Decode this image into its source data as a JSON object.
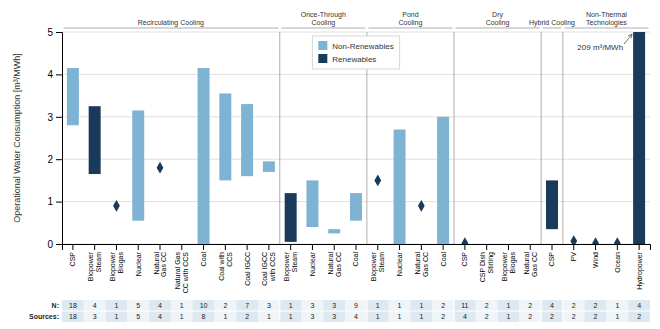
{
  "chart_data": {
    "type": "bar",
    "ylabel": "Operational Water Consumption [m³/MWh]",
    "categories": [
      "CSP",
      "Biopower\nSteam",
      "Biopower\nBiogas",
      "Nuclear",
      "Natural\nGas CC",
      "Natural Gas\nCC with CCS",
      "Coal",
      "Coal with\nCCS",
      "Coal IGCC",
      "Coal IGCC\nwith CCS",
      "Biopower\nSteam",
      "Nuclear",
      "Natural\nGas CC",
      "Coal",
      "Biopower\nSteam",
      "Nuclear",
      "Natural\nGas CC",
      "Coal",
      "CSP",
      "CSP Dish\nStirling",
      "Biopower\nBiogas",
      "Natural\nGas CC",
      "CSP",
      "PV",
      "Wind",
      "Ocean",
      "Hydropower"
    ],
    "series": [
      {
        "name": "Non-Renewables",
        "type": "bar",
        "color": "#7fb3d3",
        "low": [
          2.8,
          null,
          null,
          0.55,
          null,
          null,
          0,
          1.5,
          1.6,
          1.7,
          null,
          0.4,
          0.25,
          0.55,
          null,
          0,
          null,
          0,
          null,
          null,
          null,
          null,
          null,
          null,
          null,
          null,
          null
        ],
        "high": [
          4.15,
          null,
          null,
          3.15,
          null,
          null,
          4.15,
          3.55,
          3.3,
          1.95,
          null,
          1.5,
          0.35,
          1.2,
          null,
          2.7,
          null,
          3,
          null,
          null,
          null,
          null,
          null,
          null,
          null,
          null,
          null
        ]
      },
      {
        "name": "Renewables",
        "type": "bar",
        "color": "#1a3a5c",
        "low": [
          null,
          1.65,
          null,
          null,
          null,
          null,
          null,
          null,
          null,
          null,
          0.05,
          null,
          null,
          null,
          null,
          null,
          null,
          null,
          null,
          null,
          null,
          null,
          0.35,
          null,
          null,
          null,
          0
        ],
        "high": [
          null,
          3.25,
          null,
          null,
          null,
          null,
          null,
          null,
          null,
          null,
          1.2,
          null,
          null,
          null,
          null,
          null,
          null,
          null,
          null,
          null,
          null,
          null,
          1.5,
          null,
          null,
          null,
          5
        ]
      },
      {
        "type": "scatter",
        "marker": "diamond",
        "color": "#1a3a5c",
        "values": [
          null,
          null,
          0.9,
          null,
          1.8,
          null,
          null,
          null,
          null,
          null,
          null,
          null,
          null,
          null,
          1.5,
          null,
          0.9,
          null,
          0.02,
          null,
          null,
          null,
          null,
          0.07,
          0.02,
          0.02,
          null
        ]
      }
    ],
    "ylim": [
      0,
      5
    ],
    "yticks": [
      0,
      1,
      2,
      3,
      4,
      5
    ],
    "grid": true,
    "legend": "upper center",
    "sections": [
      {
        "label": "Recirculating Cooling",
        "first": 0,
        "last": 9
      },
      {
        "label": "Once-Through\nCooling",
        "first": 10,
        "last": 13
      },
      {
        "label": "Pond\nCooling",
        "first": 14,
        "last": 17
      },
      {
        "label": "Dry\nCooling",
        "first": 18,
        "last": 21
      },
      {
        "label": "Hybrid Cooling",
        "first": 22,
        "last": 22
      },
      {
        "label": "Non-Thermal\nTechnologies",
        "first": 23,
        "last": 26
      }
    ],
    "table": {
      "rows": [
        {
          "label": "N:",
          "values": [
            18,
            4,
            1,
            5,
            4,
            1,
            10,
            2,
            7,
            3,
            1,
            3,
            3,
            9,
            1,
            1,
            1,
            2,
            11,
            2,
            1,
            2,
            4,
            2,
            2,
            1,
            4
          ]
        },
        {
          "label": "Sources:",
          "values": [
            18,
            3,
            1,
            5,
            4,
            1,
            8,
            1,
            2,
            1,
            1,
            3,
            3,
            4,
            1,
            1,
            1,
            2,
            4,
            2,
            1,
            2,
            2,
            2,
            2,
            1,
            2
          ]
        }
      ]
    },
    "annotations": [
      {
        "text": "209 m³/MWh",
        "x": 26,
        "y": 5
      }
    ]
  }
}
